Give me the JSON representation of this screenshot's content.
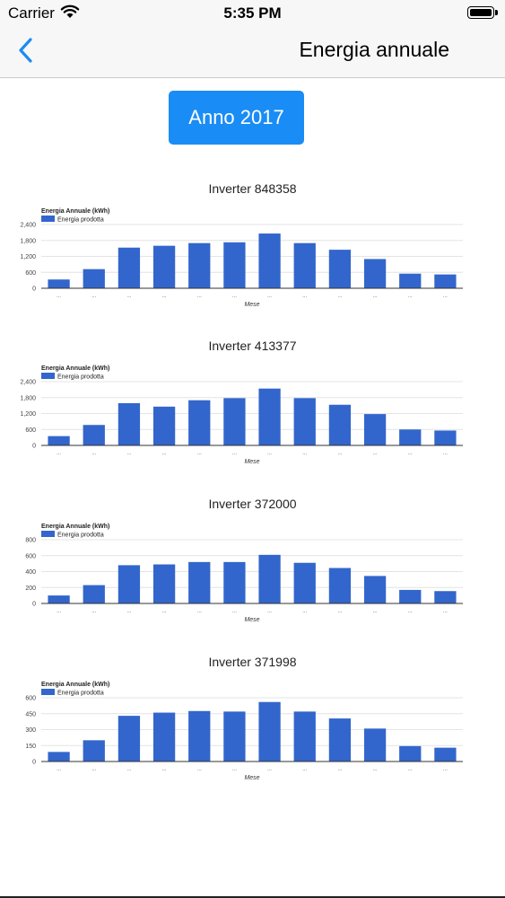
{
  "status": {
    "carrier": "Carrier",
    "time": "5:35 PM"
  },
  "nav": {
    "title": "Energia annuale",
    "back_icon": "chevron-left-icon"
  },
  "year_button": {
    "label": "Anno 2017"
  },
  "colors": {
    "bar": "#3366cc",
    "accent": "#1a8cf5"
  },
  "chart_data": [
    {
      "type": "bar",
      "title": "Inverter 848358",
      "legend_title": "Energia Annuale (kWh)",
      "series": [
        {
          "name": "Energia prodotta",
          "values": [
            330,
            720,
            1530,
            1600,
            1700,
            1730,
            2060,
            1700,
            1450,
            1100,
            550,
            520
          ]
        }
      ],
      "xlabel": "Mese",
      "ylim": [
        0,
        2400
      ],
      "yticks": [
        "0",
        "600",
        "1,200",
        "1,800",
        "2,400"
      ],
      "xtick_label": "..."
    },
    {
      "type": "bar",
      "title": "Inverter 413377",
      "legend_title": "Energia Annuale (kWh)",
      "series": [
        {
          "name": "Energia prodotta",
          "values": [
            350,
            770,
            1590,
            1460,
            1700,
            1780,
            2140,
            1780,
            1530,
            1180,
            600,
            560
          ]
        }
      ],
      "xlabel": "Mese",
      "ylim": [
        0,
        2400
      ],
      "yticks": [
        "0",
        "600",
        "1,200",
        "1,800",
        "2,400"
      ],
      "xtick_label": "..."
    },
    {
      "type": "bar",
      "title": "Inverter 372000",
      "legend_title": "Energia Annuale (kWh)",
      "series": [
        {
          "name": "Energia prodotta",
          "values": [
            100,
            230,
            480,
            490,
            520,
            520,
            610,
            510,
            445,
            345,
            170,
            155
          ]
        }
      ],
      "xlabel": "Mese",
      "ylim": [
        0,
        800
      ],
      "yticks": [
        "0",
        "200",
        "400",
        "600",
        "800"
      ],
      "xtick_label": "..."
    },
    {
      "type": "bar",
      "title": "Inverter 371998",
      "legend_title": "Energia Annuale (kWh)",
      "series": [
        {
          "name": "Energia prodotta",
          "values": [
            90,
            200,
            430,
            460,
            475,
            470,
            560,
            470,
            405,
            310,
            145,
            130
          ]
        }
      ],
      "xlabel": "Mese",
      "ylim": [
        0,
        600
      ],
      "yticks": [
        "0",
        "150",
        "300",
        "450",
        "600"
      ],
      "xtick_label": "..."
    }
  ]
}
